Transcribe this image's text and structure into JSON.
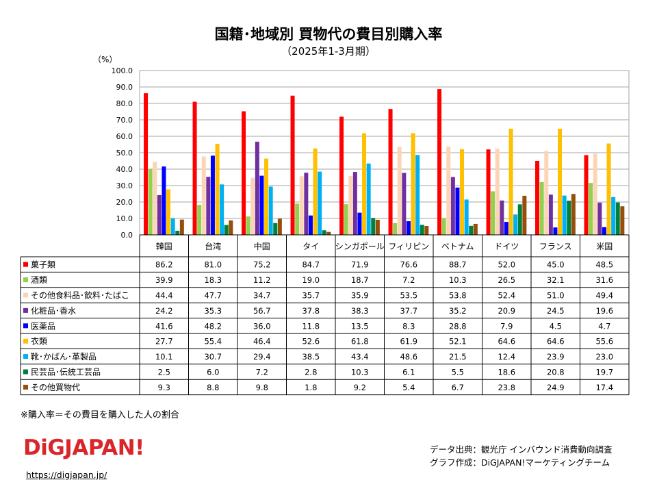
{
  "title": "国籍･地域別 買物代の費目別購入率",
  "subtitle": "（2025年1-3月期）",
  "unit_label": "（%）",
  "note": "※購入率＝その費目を購入した人の割合",
  "logo_text": "DiGJAPAN!",
  "url": "https://digjapan.jp/",
  "credit_source": "データ出典：観光庁 インバウンド消費動向調査",
  "credit_author": "グラフ作成：DiGJAPAN!マーケティングチーム",
  "chart_data": {
    "type": "bar",
    "title": "国籍･地域別 買物代の費目別購入率",
    "subtitle": "（2025年1-3月期）",
    "ylabel": "（%）",
    "ylim": [
      0,
      100
    ],
    "yticks": [
      "0.0",
      "10.0",
      "20.0",
      "30.0",
      "40.0",
      "50.0",
      "60.0",
      "70.0",
      "80.0",
      "90.0",
      "100.0"
    ],
    "grid": true,
    "legend": "data-table-left",
    "categories": [
      "韓国",
      "台湾",
      "中国",
      "タイ",
      "シンガポール",
      "フィリピン",
      "ベトナム",
      "ドイツ",
      "フランス",
      "米国"
    ],
    "series": [
      {
        "name": "菓子類",
        "color": "#ff0000",
        "values": [
          86.2,
          81.0,
          75.2,
          84.7,
          71.9,
          76.6,
          88.7,
          52.0,
          45.0,
          48.5
        ],
        "labels": [
          "86.2",
          "81.0",
          "75.2",
          "84.7",
          "71.9",
          "76.6",
          "88.7",
          "52.0",
          "45.0",
          "48.5"
        ]
      },
      {
        "name": "酒類",
        "color": "#92d050",
        "values": [
          39.9,
          18.3,
          11.2,
          19.0,
          18.7,
          7.2,
          10.3,
          26.5,
          32.1,
          31.6
        ],
        "labels": [
          "39.9",
          "18.3",
          "11.2",
          "19.0",
          "18.7",
          "7.2",
          "10.3",
          "26.5",
          "32.1",
          "31.6"
        ]
      },
      {
        "name": "その他食料品･飲料･たばこ",
        "color": "#fbd5b5",
        "values": [
          44.4,
          47.7,
          34.7,
          35.7,
          35.9,
          53.5,
          53.8,
          52.4,
          51.0,
          49.4
        ],
        "labels": [
          "44.4",
          "47.7",
          "34.7",
          "35.7",
          "35.9",
          "53.5",
          "53.8",
          "52.4",
          "51.0",
          "49.4"
        ]
      },
      {
        "name": "化粧品･香水",
        "color": "#7030a0",
        "values": [
          24.2,
          35.3,
          56.7,
          37.8,
          38.3,
          37.7,
          35.2,
          20.9,
          24.5,
          19.6
        ],
        "labels": [
          "24.2",
          "35.3",
          "56.7",
          "37.8",
          "38.3",
          "37.7",
          "35.2",
          "20.9",
          "24.5",
          "19.6"
        ]
      },
      {
        "name": "医薬品",
        "color": "#0000ff",
        "values": [
          41.6,
          48.2,
          36.0,
          11.8,
          13.5,
          8.3,
          28.8,
          7.9,
          4.5,
          4.7
        ],
        "labels": [
          "41.6",
          "48.2",
          "36.0",
          "11.8",
          "13.5",
          "8.3",
          "28.8",
          "7.9",
          "4.5",
          "4.7"
        ]
      },
      {
        "name": "衣類",
        "color": "#ffc000",
        "values": [
          27.7,
          55.4,
          46.4,
          52.6,
          61.8,
          61.9,
          52.1,
          64.6,
          64.6,
          55.6
        ],
        "labels": [
          "27.7",
          "55.4",
          "46.4",
          "52.6",
          "61.8",
          "61.9",
          "52.1",
          "64.6",
          "64.6",
          "55.6"
        ]
      },
      {
        "name": "靴･かばん･革製品",
        "color": "#00b0f0",
        "values": [
          10.1,
          30.7,
          29.4,
          38.5,
          43.4,
          48.6,
          21.5,
          12.4,
          23.9,
          23.0
        ],
        "labels": [
          "10.1",
          "30.7",
          "29.4",
          "38.5",
          "43.4",
          "48.6",
          "21.5",
          "12.4",
          "23.9",
          "23.0"
        ]
      },
      {
        "name": "民芸品･伝統工芸品",
        "color": "#00803c",
        "values": [
          2.5,
          6.0,
          7.2,
          2.8,
          10.3,
          6.1,
          5.5,
          18.6,
          20.8,
          19.7
        ],
        "labels": [
          "2.5",
          "6.0",
          "7.2",
          "2.8",
          "10.3",
          "6.1",
          "5.5",
          "18.6",
          "20.8",
          "19.7"
        ]
      },
      {
        "name": "その他買物代",
        "color": "#954f0a",
        "values": [
          9.3,
          8.8,
          9.8,
          1.8,
          9.2,
          5.4,
          6.7,
          23.8,
          24.9,
          17.4
        ],
        "labels": [
          "9.3",
          "8.8",
          "9.8",
          "1.8",
          "9.2",
          "5.4",
          "6.7",
          "23.8",
          "24.9",
          "17.4"
        ]
      }
    ]
  }
}
